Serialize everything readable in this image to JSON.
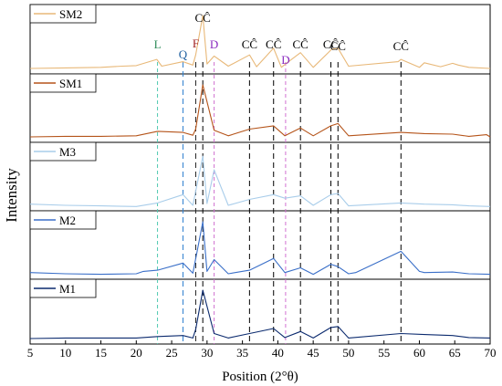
{
  "chart_data": {
    "type": "line",
    "xlabel": "Position (2°θ)",
    "ylabel": "Intensity",
    "xlim": [
      5,
      70
    ],
    "x_ticks": [
      5,
      10,
      15,
      20,
      25,
      30,
      35,
      40,
      45,
      50,
      55,
      60,
      65,
      70
    ],
    "x_tick_labels": [
      "5",
      "10",
      "15",
      "20",
      "25",
      "30",
      "35",
      "40",
      "45",
      "50",
      "55",
      "60",
      "65",
      "70"
    ],
    "grid": false,
    "series": [
      {
        "name": "SM2",
        "color": "#e8b878",
        "baseline": 0.06,
        "points": [
          [
            5,
            0.06
          ],
          [
            10,
            0.07
          ],
          [
            15,
            0.08
          ],
          [
            18,
            0.1
          ],
          [
            20,
            0.11
          ],
          [
            22.9,
            0.22
          ],
          [
            23.6,
            0.1
          ],
          [
            26.6,
            0.18
          ],
          [
            28,
            0.12
          ],
          [
            28.4,
            0.3
          ],
          [
            29.4,
            1.0
          ],
          [
            30,
            0.14
          ],
          [
            31,
            0.28
          ],
          [
            33,
            0.1
          ],
          [
            36,
            0.3
          ],
          [
            37,
            0.09
          ],
          [
            39.4,
            0.42
          ],
          [
            40.5,
            0.08
          ],
          [
            41.1,
            0.14
          ],
          [
            43.2,
            0.34
          ],
          [
            45,
            0.08
          ],
          [
            47.2,
            0.35
          ],
          [
            47.6,
            0.4
          ],
          [
            48.5,
            0.42
          ],
          [
            50,
            0.1
          ],
          [
            57,
            0.18
          ],
          [
            57.4,
            0.22
          ],
          [
            60,
            0.08
          ],
          [
            60.7,
            0.16
          ],
          [
            63,
            0.09
          ],
          [
            64.7,
            0.15
          ],
          [
            65.5,
            0.12
          ],
          [
            67,
            0.08
          ],
          [
            70,
            0.06
          ]
        ]
      },
      {
        "name": "SM1",
        "color": "#b5541a",
        "baseline": 0.06,
        "points": [
          [
            5,
            0.06
          ],
          [
            10,
            0.07
          ],
          [
            15,
            0.07
          ],
          [
            20,
            0.08
          ],
          [
            23,
            0.16
          ],
          [
            26.6,
            0.14
          ],
          [
            28,
            0.09
          ],
          [
            28.4,
            0.2
          ],
          [
            29.4,
            1.0
          ],
          [
            31,
            0.18
          ],
          [
            33,
            0.08
          ],
          [
            36,
            0.2
          ],
          [
            39.4,
            0.26
          ],
          [
            41,
            0.08
          ],
          [
            43.2,
            0.22
          ],
          [
            45,
            0.08
          ],
          [
            47.5,
            0.26
          ],
          [
            48.5,
            0.3
          ],
          [
            50,
            0.08
          ],
          [
            57.4,
            0.14
          ],
          [
            60.7,
            0.12
          ],
          [
            64.7,
            0.11
          ],
          [
            67,
            0.07
          ],
          [
            69.5,
            0.1
          ],
          [
            70,
            0.06
          ]
        ]
      },
      {
        "name": "M3",
        "color": "#a9cdea",
        "baseline": 0.12,
        "points": [
          [
            5,
            0.14
          ],
          [
            10,
            0.12
          ],
          [
            15,
            0.11
          ],
          [
            20,
            0.1
          ],
          [
            23,
            0.16
          ],
          [
            26.6,
            0.3
          ],
          [
            28,
            0.12
          ],
          [
            29.4,
            0.95
          ],
          [
            30,
            0.15
          ],
          [
            31,
            0.72
          ],
          [
            33,
            0.12
          ],
          [
            36,
            0.22
          ],
          [
            39.4,
            0.3
          ],
          [
            41,
            0.24
          ],
          [
            43.2,
            0.28
          ],
          [
            45,
            0.12
          ],
          [
            47.5,
            0.3
          ],
          [
            48.5,
            0.32
          ],
          [
            50,
            0.11
          ],
          [
            57.4,
            0.16
          ],
          [
            60.7,
            0.14
          ],
          [
            64.7,
            0.13
          ],
          [
            67,
            0.11
          ],
          [
            70,
            0.1
          ]
        ]
      },
      {
        "name": "M2",
        "color": "#3a6fc8",
        "baseline": 0.12,
        "points": [
          [
            5,
            0.14
          ],
          [
            10,
            0.12
          ],
          [
            15,
            0.11
          ],
          [
            20,
            0.12
          ],
          [
            21,
            0.16
          ],
          [
            23,
            0.18
          ],
          [
            26.6,
            0.3
          ],
          [
            28,
            0.13
          ],
          [
            28.6,
            0.5
          ],
          [
            29.4,
            1.0
          ],
          [
            30,
            0.16
          ],
          [
            31,
            0.36
          ],
          [
            33,
            0.12
          ],
          [
            36,
            0.18
          ],
          [
            39.4,
            0.38
          ],
          [
            41,
            0.14
          ],
          [
            43.2,
            0.22
          ],
          [
            45,
            0.11
          ],
          [
            47.5,
            0.28
          ],
          [
            48.5,
            0.24
          ],
          [
            50,
            0.12
          ],
          [
            51,
            0.14
          ],
          [
            57.4,
            0.5
          ],
          [
            60,
            0.16
          ],
          [
            60.7,
            0.14
          ],
          [
            64.7,
            0.15
          ],
          [
            67,
            0.12
          ],
          [
            70,
            0.11
          ]
        ]
      },
      {
        "name": "M1",
        "color": "#0b2a6e",
        "baseline": 0.04,
        "points": [
          [
            5,
            0.04
          ],
          [
            10,
            0.05
          ],
          [
            15,
            0.05
          ],
          [
            20,
            0.05
          ],
          [
            23,
            0.08
          ],
          [
            26.6,
            0.1
          ],
          [
            28,
            0.05
          ],
          [
            28.4,
            0.22
          ],
          [
            29.4,
            1.0
          ],
          [
            31,
            0.14
          ],
          [
            33,
            0.05
          ],
          [
            36,
            0.14
          ],
          [
            39.4,
            0.24
          ],
          [
            41,
            0.06
          ],
          [
            43.2,
            0.18
          ],
          [
            45,
            0.05
          ],
          [
            47.5,
            0.26
          ],
          [
            48.5,
            0.28
          ],
          [
            50,
            0.05
          ],
          [
            57.4,
            0.14
          ],
          [
            60.7,
            0.12
          ],
          [
            64.7,
            0.1
          ],
          [
            67,
            0.06
          ],
          [
            70,
            0.05
          ]
        ]
      }
    ],
    "reference_lines": [
      {
        "x": 23.0,
        "label": "L",
        "label_color": "#2e8b57",
        "line_color": "#4fc9b0"
      },
      {
        "x": 26.6,
        "label": "Q",
        "label_color": "#2060a0",
        "line_color": "#2e7fd0"
      },
      {
        "x": 28.4,
        "label": "F",
        "label_color": "#a02020",
        "line_color": "#202020"
      },
      {
        "x": 29.4,
        "label": "CĈ",
        "label_color": "#000000",
        "line_color": "#000000"
      },
      {
        "x": 31.0,
        "label": "D",
        "label_color": "#8a2bbf",
        "line_color": "#d070d0"
      },
      {
        "x": 36.0,
        "label": "CĈ",
        "label_color": "#000000",
        "line_color": "#000000"
      },
      {
        "x": 39.4,
        "label": "CĈ",
        "label_color": "#000000",
        "line_color": "#000000"
      },
      {
        "x": 41.1,
        "label": "D",
        "label_color": "#8a2bbf",
        "line_color": "#d070d0"
      },
      {
        "x": 43.2,
        "label": "CĈ",
        "label_color": "#000000",
        "line_color": "#000000"
      },
      {
        "x": 47.5,
        "label": "CĈ",
        "label_color": "#000000",
        "line_color": "#000000"
      },
      {
        "x": 48.5,
        "label": "CĈ",
        "label_color": "#000000",
        "line_color": "#000000"
      },
      {
        "x": 57.4,
        "label": "CĈ",
        "label_color": "#000000",
        "line_color": "#000000"
      }
    ]
  }
}
